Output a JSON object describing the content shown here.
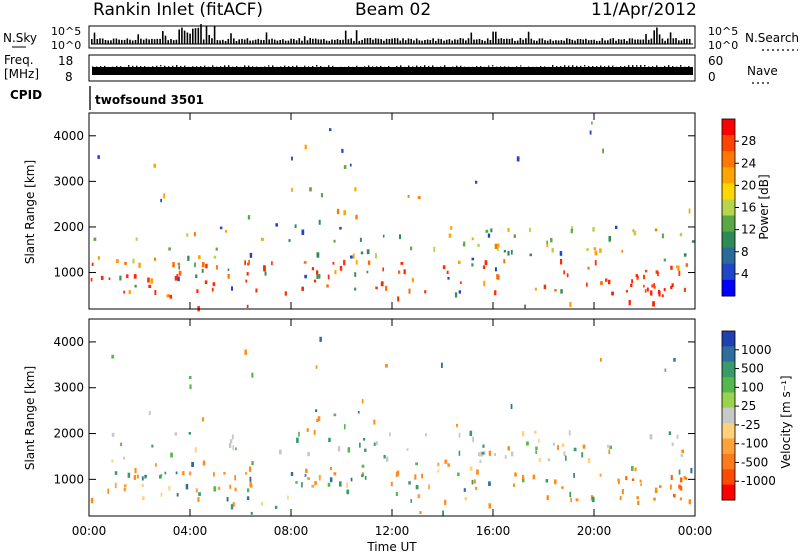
{
  "header": {
    "station": "Rankin Inlet (fitACF)",
    "beam": "Beam 02",
    "date": "11/Apr/2012"
  },
  "noise_panel": {
    "left_label": "N.Sky",
    "right_label": "N.Search",
    "left_ticks": [
      "10^5",
      "10^0"
    ],
    "right_ticks": [
      "10^5",
      "10^0"
    ]
  },
  "freq_panel": {
    "left_label_1": "Freq.",
    "left_label_2": "[MHz]",
    "left_ticks": [
      "18",
      "8"
    ],
    "right_label": "Nave",
    "right_ticks": [
      "60",
      "0"
    ]
  },
  "cpid_panel": {
    "label": "CPID",
    "program": "twofsound 3501"
  },
  "chart_data": [
    {
      "type": "heatmap",
      "name": "power",
      "ylabel": "Slant Range [km]",
      "yticks": [
        "4000",
        "3000",
        "2000",
        "1000"
      ],
      "ylim": [
        200,
        4500
      ],
      "xticks": [
        "00:00",
        "04:00",
        "08:00",
        "12:00",
        "16:00",
        "20:00",
        "00:00"
      ],
      "xlim_hours": [
        0,
        24
      ],
      "colorbar_label": "Power [dB]",
      "colorbar_ticks": [
        "28",
        "24",
        "20",
        "16",
        "12",
        "8",
        "4"
      ],
      "colorbar_colors": [
        "#ff0000",
        "#ff4400",
        "#ff7700",
        "#ffa500",
        "#ffd700",
        "#b8d44a",
        "#5aa845",
        "#2e8b57",
        "#2a6a9a",
        "#1f45c8",
        "#0000ff"
      ]
    },
    {
      "type": "heatmap",
      "name": "velocity",
      "ylabel": "Slant Range [km]",
      "yticks": [
        "4000",
        "3000",
        "2000",
        "1000"
      ],
      "ylim": [
        200,
        4500
      ],
      "xticks": [
        "00:00",
        "04:00",
        "08:00",
        "12:00",
        "16:00",
        "20:00",
        "00:00"
      ],
      "xlabel": "Time UT",
      "xlim_hours": [
        0,
        24
      ],
      "colorbar_label": "Velocity [m s⁻¹]",
      "colorbar_ticks": [
        "1000",
        "500",
        "100",
        "25",
        "-25",
        "-100",
        "-500",
        "-1000"
      ],
      "colorbar_colors": [
        "#2040b0",
        "#2e6e9e",
        "#3a9a6a",
        "#55b84a",
        "#9ad44e",
        "#c8c8c8",
        "#ffd27a",
        "#ffa23a",
        "#ff7a1a",
        "#ff4a00",
        "#ff0000"
      ]
    }
  ]
}
